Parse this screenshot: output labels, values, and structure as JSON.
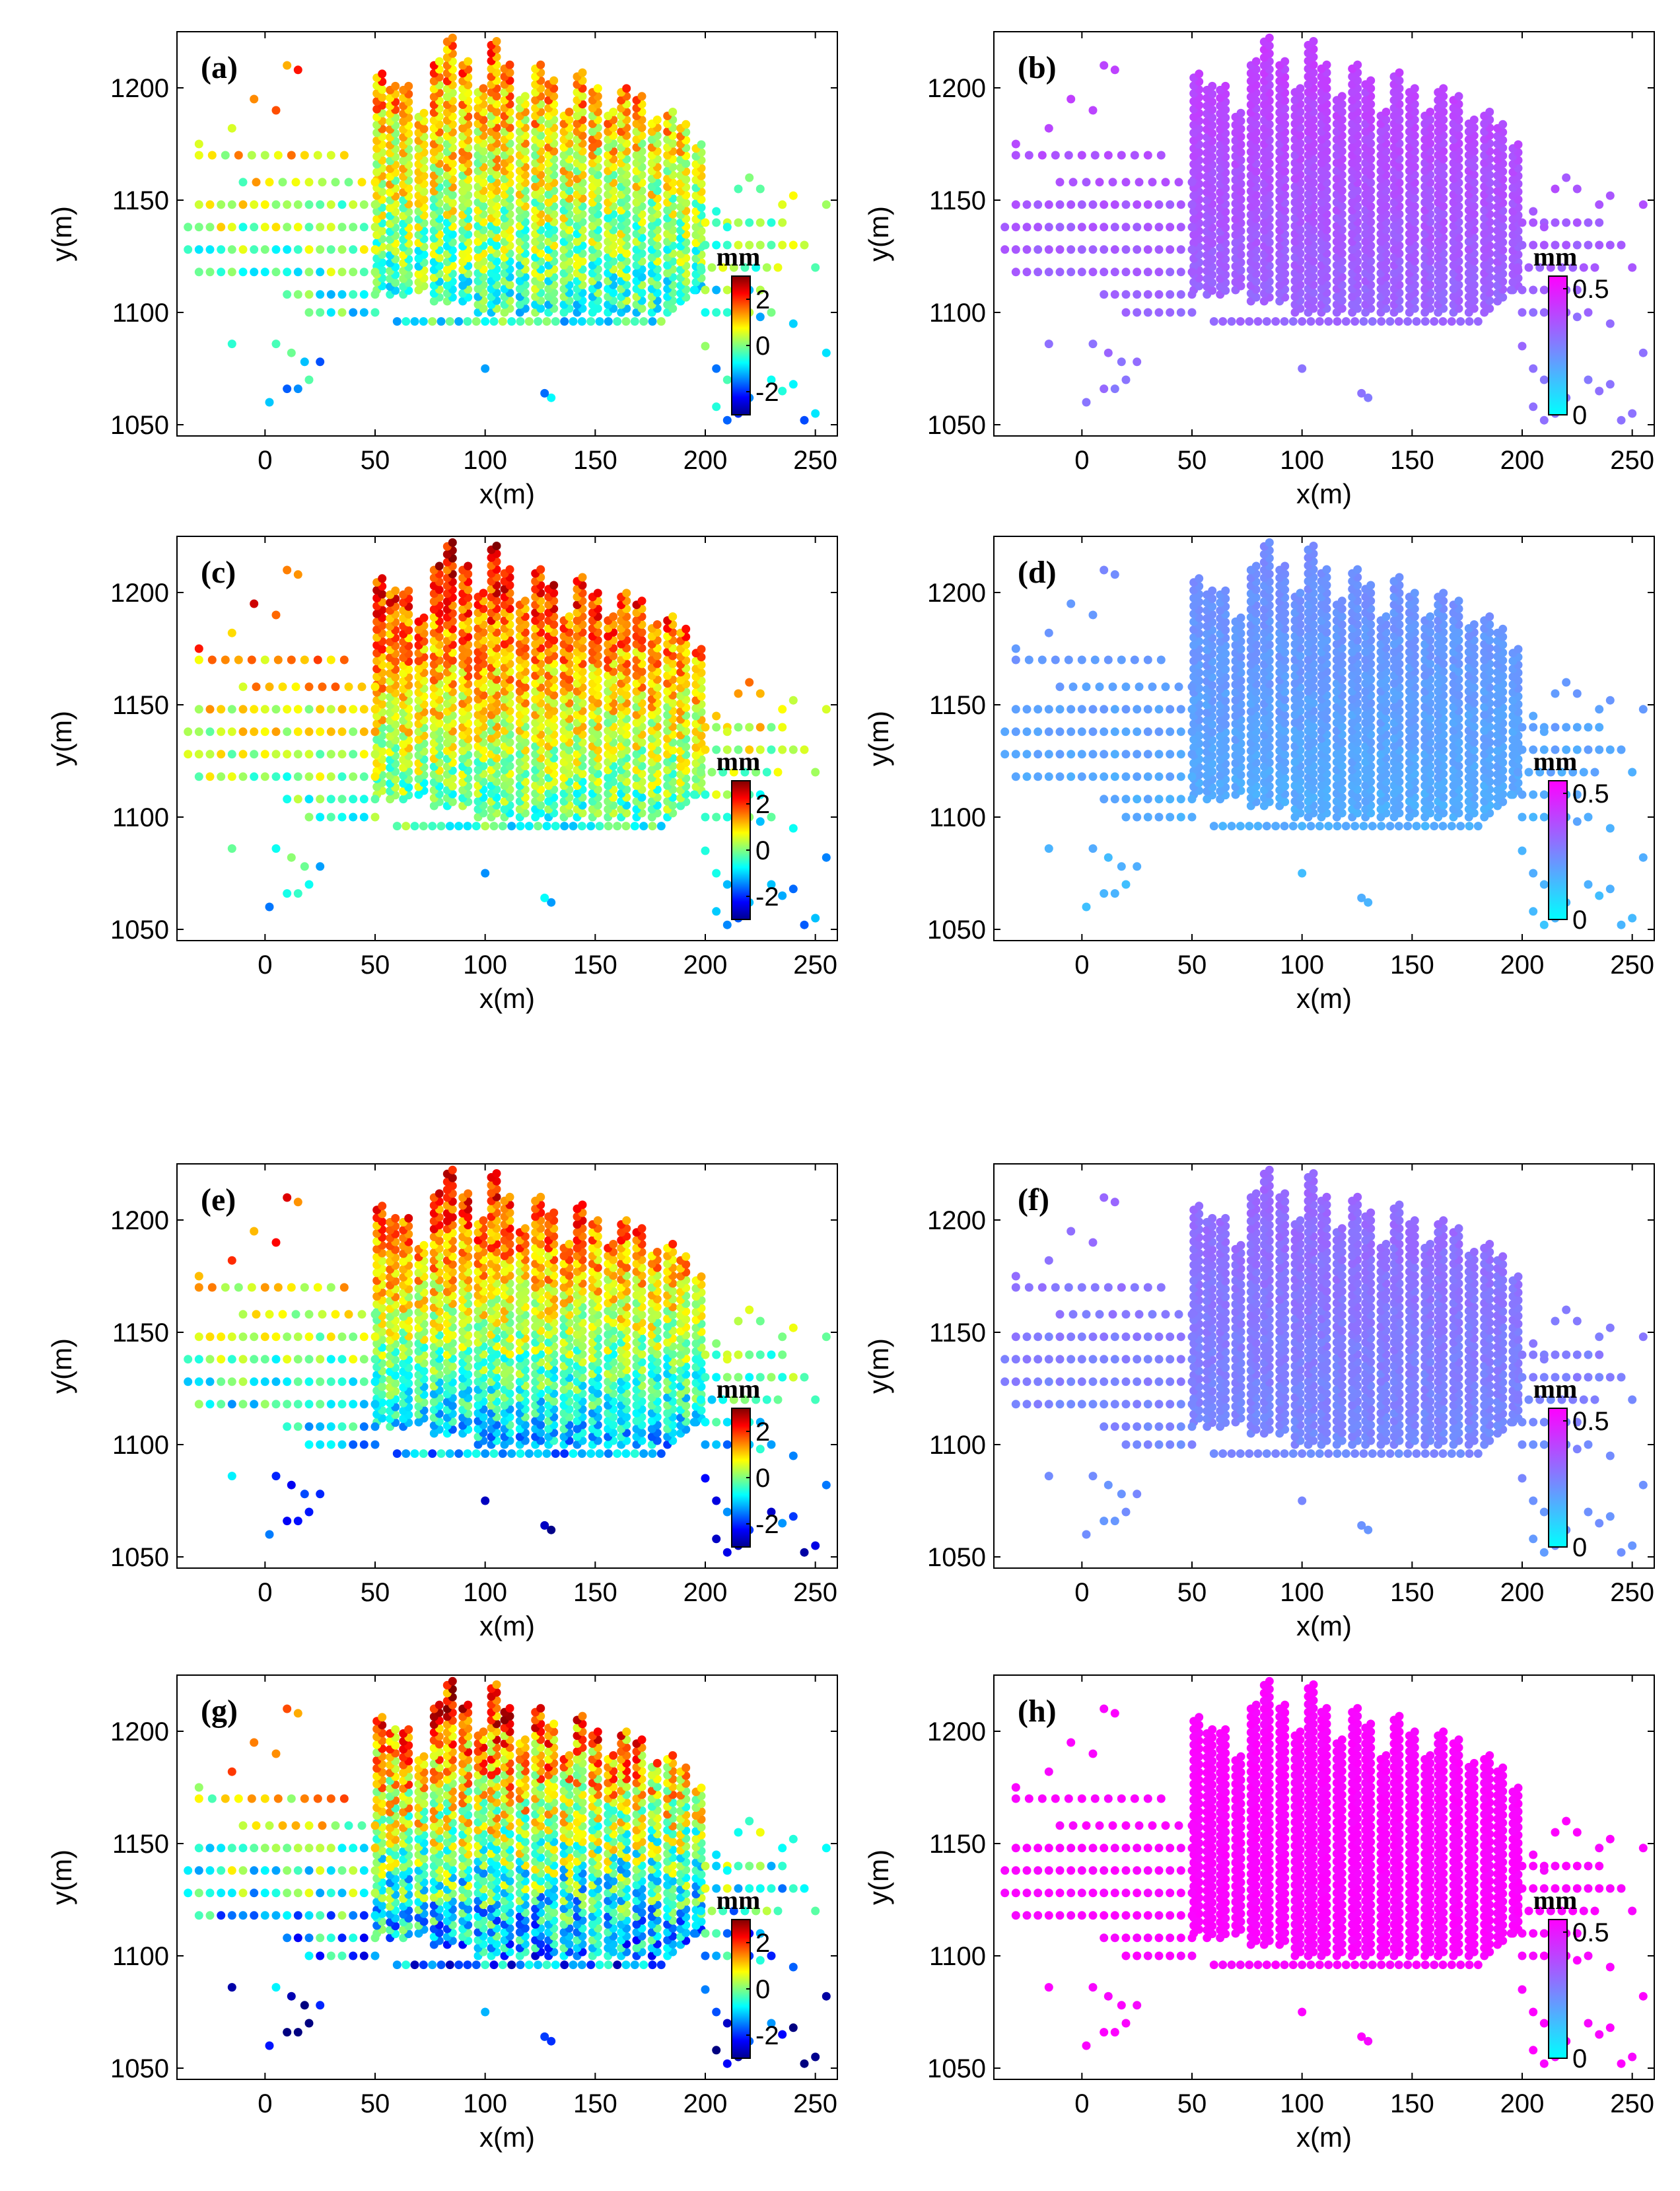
{
  "chart_data": [
    {
      "panel": "(a)",
      "type": "scatter",
      "colormap": "jet",
      "colorbar": {
        "unit": "mm",
        "ticks": [
          "2",
          "0",
          "-2"
        ],
        "range": [
          -3,
          3
        ]
      },
      "xlabel": "x(m)",
      "ylabel": "y(m)",
      "xlim": [
        -40,
        260
      ],
      "ylim": [
        1045,
        1225
      ],
      "xticks": [
        "0",
        "50",
        "100",
        "150",
        "200",
        "250"
      ],
      "yticks": [
        "1050",
        "1100",
        "1150",
        "1200"
      ],
      "value_model": {
        "base": 0.2,
        "north_gain": 1.4,
        "noise": 0.9
      }
    },
    {
      "panel": "(b)",
      "type": "scatter",
      "colormap": "cyan-magenta",
      "colorbar": {
        "unit": "mm",
        "ticks": [
          "0.5",
          "0"
        ],
        "range": [
          0,
          0.55
        ]
      },
      "xlabel": "x(m)",
      "ylabel": "y(m)",
      "xlim": [
        -40,
        260
      ],
      "ylim": [
        1045,
        1225
      ],
      "xticks": [
        "0",
        "50",
        "100",
        "150",
        "200",
        "250"
      ],
      "yticks": [
        "1050",
        "1100",
        "1150",
        "1200"
      ],
      "value_model": {
        "base": 0.36,
        "north_gain": 0.06,
        "noise": 0.02
      }
    },
    {
      "panel": "(c)",
      "type": "scatter",
      "colormap": "jet",
      "colorbar": {
        "unit": "mm",
        "ticks": [
          "2",
          "0",
          "-2"
        ],
        "range": [
          -3,
          3
        ]
      },
      "xlabel": "x(m)",
      "ylabel": "y(m)",
      "xlim": [
        -40,
        260
      ],
      "ylim": [
        1045,
        1225
      ],
      "xticks": [
        "0",
        "50",
        "100",
        "150",
        "200",
        "250"
      ],
      "yticks": [
        "1050",
        "1100",
        "1150",
        "1200"
      ],
      "value_model": {
        "base": 0.6,
        "north_gain": 1.8,
        "noise": 0.8
      }
    },
    {
      "panel": "(d)",
      "type": "scatter",
      "colormap": "cyan-magenta",
      "colorbar": {
        "unit": "mm",
        "ticks": [
          "0.5",
          "0"
        ],
        "range": [
          0,
          0.55
        ]
      },
      "xlabel": "x(m)",
      "ylabel": "y(m)",
      "xlim": [
        -40,
        260
      ],
      "ylim": [
        1045,
        1225
      ],
      "xticks": [
        "0",
        "50",
        "100",
        "150",
        "200",
        "250"
      ],
      "yticks": [
        "1050",
        "1100",
        "1150",
        "1200"
      ],
      "value_model": {
        "base": 0.2,
        "north_gain": 0.05,
        "noise": 0.02
      }
    },
    {
      "panel": "(e)",
      "type": "scatter",
      "colormap": "jet",
      "colorbar": {
        "unit": "mm",
        "ticks": [
          "2",
          "0",
          "-2"
        ],
        "range": [
          -3,
          3
        ]
      },
      "xlabel": "x(m)",
      "ylabel": "y(m)",
      "xlim": [
        -40,
        260
      ],
      "ylim": [
        1045,
        1225
      ],
      "xticks": [
        "0",
        "50",
        "100",
        "150",
        "200",
        "250"
      ],
      "yticks": [
        "1050",
        "1100",
        "1150",
        "1200"
      ],
      "value_model": {
        "base": 0.0,
        "north_gain": 2.3,
        "noise": 0.8
      }
    },
    {
      "panel": "(f)",
      "type": "scatter",
      "colormap": "cyan-magenta",
      "colorbar": {
        "unit": "mm",
        "ticks": [
          "0.5",
          "0"
        ],
        "range": [
          0,
          0.55
        ]
      },
      "xlabel": "x(m)",
      "ylabel": "y(m)",
      "xlim": [
        -40,
        260
      ],
      "ylim": [
        1045,
        1225
      ],
      "xticks": [
        "0",
        "50",
        "100",
        "150",
        "200",
        "250"
      ],
      "yticks": [
        "1050",
        "1100",
        "1150",
        "1200"
      ],
      "value_model": {
        "base": 0.28,
        "north_gain": 0.05,
        "noise": 0.02
      }
    },
    {
      "panel": "(g)",
      "type": "scatter",
      "colormap": "jet",
      "colorbar": {
        "unit": "mm",
        "ticks": [
          "2",
          "0",
          "-2"
        ],
        "range": [
          -3,
          3
        ]
      },
      "xlabel": "x(m)",
      "ylabel": "y(m)",
      "xlim": [
        -40,
        260
      ],
      "ylim": [
        1045,
        1225
      ],
      "xticks": [
        "0",
        "50",
        "100",
        "150",
        "200",
        "250"
      ],
      "yticks": [
        "1050",
        "1100",
        "1150",
        "1200"
      ],
      "value_model": {
        "base": -0.2,
        "north_gain": 2.4,
        "noise": 1.2
      }
    },
    {
      "panel": "(h)",
      "type": "scatter",
      "colormap": "cyan-magenta",
      "colorbar": {
        "unit": "mm",
        "ticks": [
          "0.5",
          "0"
        ],
        "range": [
          0,
          0.55
        ]
      },
      "xlabel": "x(m)",
      "ylabel": "y(m)",
      "xlim": [
        -40,
        260
      ],
      "ylim": [
        1045,
        1225
      ],
      "xticks": [
        "0",
        "50",
        "100",
        "150",
        "200",
        "250"
      ],
      "yticks": [
        "1050",
        "1100",
        "1150",
        "1200"
      ],
      "value_model": {
        "base": 0.54,
        "north_gain": 0.0,
        "noise": 0.01
      }
    }
  ],
  "point_cloud": {
    "columns": [
      {
        "x": 52,
        "y0": 1110,
        "y1": 1205,
        "step": 3.5
      },
      {
        "x": 58,
        "y0": 1108,
        "y1": 1200,
        "step": 3.5
      },
      {
        "x": 64,
        "y0": 1108,
        "y1": 1200,
        "step": 3.5
      },
      {
        "x": 71,
        "y0": 1110,
        "y1": 1190,
        "step": 3.5
      },
      {
        "x": 78,
        "y0": 1105,
        "y1": 1212,
        "step": 3.5
      },
      {
        "x": 84,
        "y0": 1105,
        "y1": 1222,
        "step": 3.5
      },
      {
        "x": 91,
        "y0": 1105,
        "y1": 1212,
        "step": 3.5
      },
      {
        "x": 98,
        "y0": 1100,
        "y1": 1200,
        "step": 3.5
      },
      {
        "x": 104,
        "y0": 1100,
        "y1": 1222,
        "step": 3.5
      },
      {
        "x": 110,
        "y0": 1100,
        "y1": 1210,
        "step": 3.5
      },
      {
        "x": 117,
        "y0": 1100,
        "y1": 1195,
        "step": 3.5
      },
      {
        "x": 124,
        "y0": 1100,
        "y1": 1210,
        "step": 3.5
      },
      {
        "x": 130,
        "y0": 1100,
        "y1": 1203,
        "step": 3.5
      },
      {
        "x": 137,
        "y0": 1100,
        "y1": 1190,
        "step": 3.5
      },
      {
        "x": 143,
        "y0": 1100,
        "y1": 1205,
        "step": 3.5
      },
      {
        "x": 150,
        "y0": 1100,
        "y1": 1200,
        "step": 3.5
      },
      {
        "x": 157,
        "y0": 1100,
        "y1": 1190,
        "step": 3.5
      },
      {
        "x": 163,
        "y0": 1100,
        "y1": 1200,
        "step": 3.5
      },
      {
        "x": 170,
        "y0": 1100,
        "y1": 1195,
        "step": 3.5
      },
      {
        "x": 177,
        "y0": 1100,
        "y1": 1185,
        "step": 3.5
      },
      {
        "x": 184,
        "y0": 1100,
        "y1": 1190,
        "step": 3.5
      },
      {
        "x": 190,
        "y0": 1105,
        "y1": 1185,
        "step": 3.5
      },
      {
        "x": 197,
        "y0": 1110,
        "y1": 1175,
        "step": 3.5
      }
    ],
    "rows": [
      {
        "y": 1118,
        "x0": -30,
        "x1": 50,
        "step": 5
      },
      {
        "y": 1128,
        "x0": -35,
        "x1": 50,
        "step": 5
      },
      {
        "y": 1138,
        "x0": -35,
        "x1": 50,
        "step": 5
      },
      {
        "y": 1148,
        "x0": -30,
        "x1": 50,
        "step": 5
      },
      {
        "y": 1158,
        "x0": -10,
        "x1": 50,
        "step": 6
      },
      {
        "y": 1170,
        "x0": -30,
        "x1": 40,
        "step": 6
      },
      {
        "y": 1108,
        "x0": 10,
        "x1": 50,
        "step": 5
      },
      {
        "y": 1100,
        "x0": 20,
        "x1": 50,
        "step": 5
      },
      {
        "y": 1096,
        "x0": 60,
        "x1": 180,
        "step": 4
      },
      {
        "y": 1140,
        "x0": 200,
        "x1": 235,
        "step": 5
      },
      {
        "y": 1130,
        "x0": 200,
        "x1": 240,
        "step": 5
      },
      {
        "y": 1120,
        "x0": 198,
        "x1": 235,
        "step": 5
      },
      {
        "y": 1110,
        "x0": 195,
        "x1": 225,
        "step": 5
      },
      {
        "y": 1100,
        "x0": 200,
        "x1": 220,
        "step": 5
      }
    ],
    "scatter": [
      [
        -30,
        1175
      ],
      [
        -15,
        1182
      ],
      [
        10,
        1210
      ],
      [
        15,
        1208
      ],
      [
        -5,
        1195
      ],
      [
        5,
        1190
      ],
      [
        -15,
        1086
      ],
      [
        5,
        1086
      ],
      [
        12,
        1082
      ],
      [
        18,
        1078
      ],
      [
        25,
        1078
      ],
      [
        10,
        1066
      ],
      [
        15,
        1066
      ],
      [
        2,
        1060
      ],
      [
        20,
        1070
      ],
      [
        100,
        1075
      ],
      [
        130,
        1062
      ],
      [
        127,
        1064
      ],
      [
        200,
        1085
      ],
      [
        205,
        1075
      ],
      [
        210,
        1070
      ],
      [
        215,
        1065
      ],
      [
        220,
        1062
      ],
      [
        205,
        1058
      ],
      [
        210,
        1052
      ],
      [
        215,
        1055
      ],
      [
        230,
        1070
      ],
      [
        240,
        1068
      ],
      [
        235,
        1065
      ],
      [
        245,
        1052
      ],
      [
        250,
        1055
      ],
      [
        255,
        1082
      ],
      [
        255,
        1148
      ],
      [
        215,
        1155
      ],
      [
        225,
        1155
      ],
      [
        240,
        1152
      ],
      [
        235,
        1148
      ],
      [
        220,
        1160
      ],
      [
        245,
        1130
      ],
      [
        250,
        1120
      ],
      [
        230,
        1100
      ],
      [
        240,
        1095
      ],
      [
        215,
        1092
      ],
      [
        225,
        1098
      ],
      [
        205,
        1145
      ],
      [
        210,
        1138
      ]
    ]
  }
}
